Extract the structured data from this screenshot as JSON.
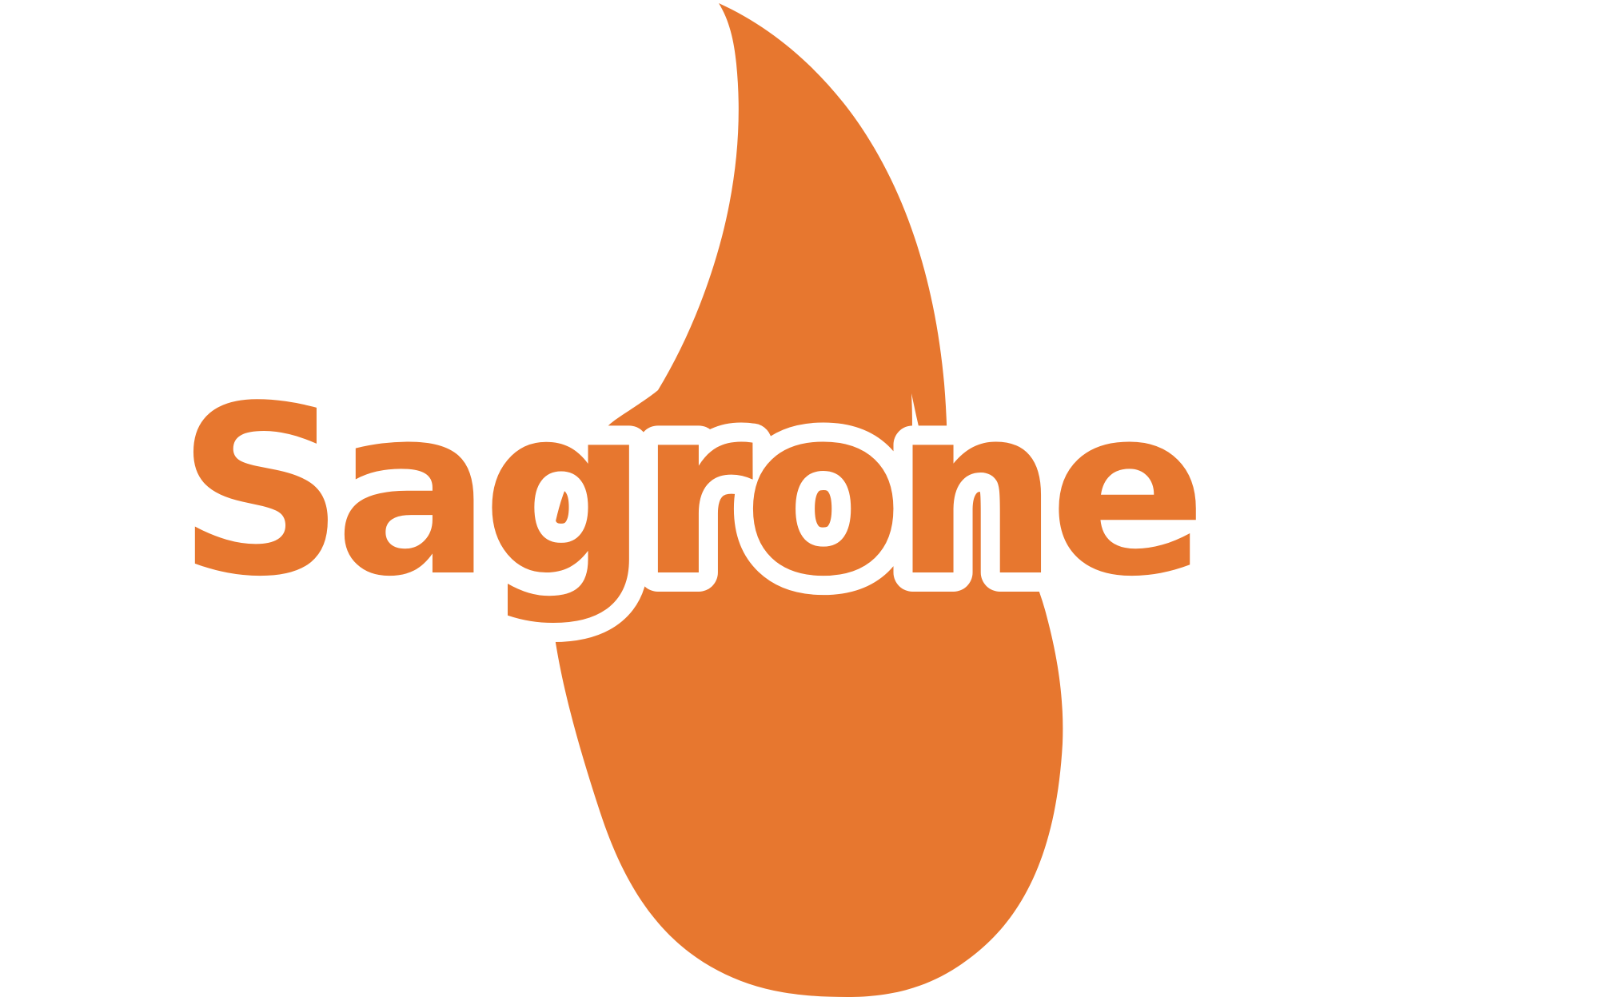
{
  "logo": {
    "wordmark": "Sagrone",
    "brand_color": "#E7772F",
    "background_color": "#FFFFFF",
    "icon": "flame-icon"
  }
}
